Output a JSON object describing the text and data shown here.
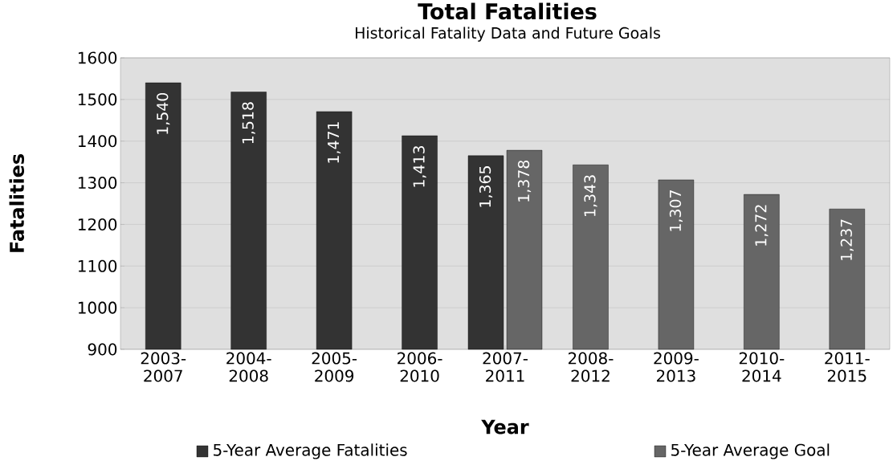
{
  "chart_data": {
    "type": "bar",
    "title": "Total Fatalities",
    "subtitle": "Historical Fatality Data and Future Goals",
    "xlabel": "Year",
    "ylabel": "Fatalities",
    "categories": [
      "2003-2007",
      "2004-2008",
      "2005-2009",
      "2006-2010",
      "2007-2011",
      "2008-2012",
      "2009-2013",
      "2010-2014",
      "2011-2015"
    ],
    "series": [
      {
        "name": "5-Year Average Fatalities",
        "color": "#333333",
        "values": [
          1540,
          1518,
          1471,
          1413,
          1365,
          null,
          null,
          null,
          null
        ],
        "value_labels": [
          "1,540",
          "1,518",
          "1,471",
          "1,413",
          "1,365",
          null,
          null,
          null,
          null
        ]
      },
      {
        "name": "5-Year Average Goal",
        "color": "#666666",
        "values": [
          null,
          null,
          null,
          null,
          1378,
          1343,
          1307,
          1272,
          1237
        ],
        "value_labels": [
          null,
          null,
          null,
          null,
          "1,378",
          "1,343",
          "1,307",
          "1,272",
          "1,237"
        ]
      }
    ],
    "ylim": [
      900,
      1600
    ],
    "yticks": [
      900,
      1000,
      1100,
      1200,
      1300,
      1400,
      1500,
      1600
    ],
    "grid": "y",
    "legend": "bottom"
  }
}
